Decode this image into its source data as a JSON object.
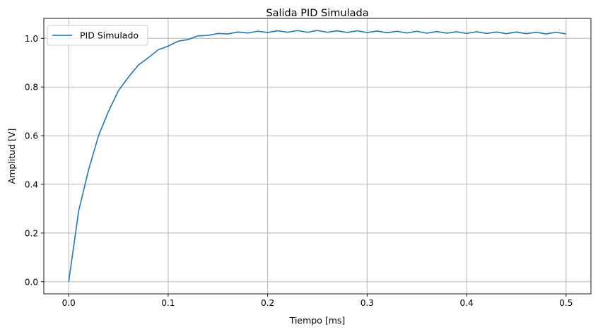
{
  "chart_data": {
    "type": "line",
    "title": "Salida PID Simulada",
    "xlabel": "Tiempo [ms]",
    "ylabel": "Amplitud [V]",
    "xlim": [
      -0.025,
      0.525
    ],
    "ylim": [
      -0.05,
      1.082
    ],
    "xticks": [
      0.0,
      0.1,
      0.2,
      0.3,
      0.4,
      0.5
    ],
    "xtick_labels": [
      "0.0",
      "0.1",
      "0.2",
      "0.3",
      "0.4",
      "0.5"
    ],
    "yticks": [
      0.0,
      0.2,
      0.4,
      0.6,
      0.8,
      1.0
    ],
    "ytick_labels": [
      "0.0",
      "0.2",
      "0.4",
      "0.6",
      "0.8",
      "1.0"
    ],
    "grid": true,
    "legend_position": "upper-left",
    "series": [
      {
        "name": "PID Simulado",
        "color": "#1f77b4",
        "x": [
          0.0,
          0.01,
          0.02,
          0.03,
          0.04,
          0.05,
          0.06,
          0.07,
          0.08,
          0.09,
          0.1,
          0.11,
          0.12,
          0.13,
          0.14,
          0.15,
          0.16,
          0.17,
          0.18,
          0.19,
          0.2,
          0.21,
          0.22,
          0.23,
          0.24,
          0.25,
          0.26,
          0.27,
          0.28,
          0.29,
          0.3,
          0.31,
          0.32,
          0.33,
          0.34,
          0.35,
          0.36,
          0.37,
          0.38,
          0.39,
          0.4,
          0.41,
          0.42,
          0.43,
          0.44,
          0.45,
          0.46,
          0.47,
          0.48,
          0.49,
          0.5
        ],
        "y": [
          0.0,
          0.29,
          0.46,
          0.6,
          0.7,
          0.785,
          0.84,
          0.89,
          0.92,
          0.953,
          0.968,
          0.988,
          0.995,
          1.01,
          1.012,
          1.02,
          1.018,
          1.026,
          1.022,
          1.029,
          1.024,
          1.031,
          1.025,
          1.032,
          1.025,
          1.032,
          1.025,
          1.031,
          1.024,
          1.031,
          1.024,
          1.03,
          1.023,
          1.029,
          1.022,
          1.029,
          1.021,
          1.028,
          1.021,
          1.027,
          1.02,
          1.027,
          1.02,
          1.026,
          1.019,
          1.026,
          1.019,
          1.025,
          1.018,
          1.025,
          1.018
        ]
      }
    ]
  }
}
